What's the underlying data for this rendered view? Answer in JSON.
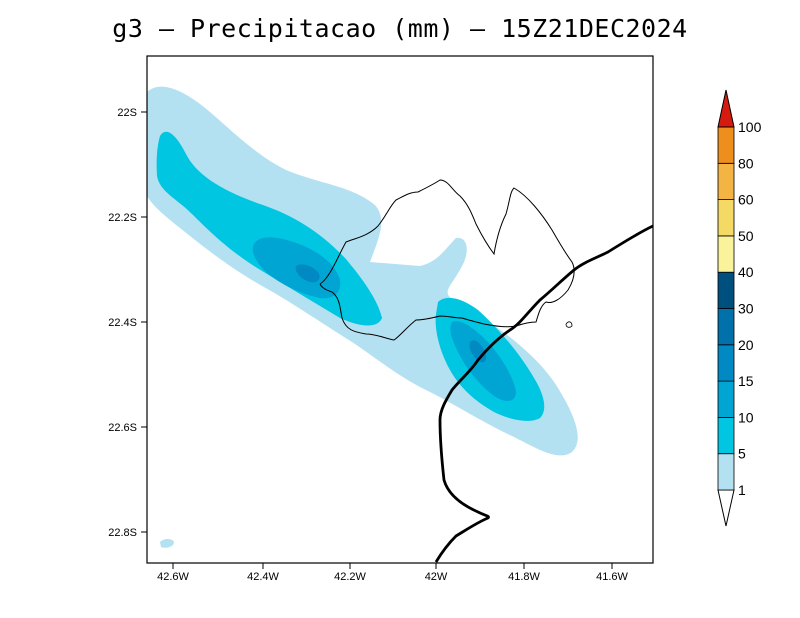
{
  "title": "g3 – Precipitacao (mm) – 15Z21DEC2024",
  "map": {
    "lat_labels": [
      "22S",
      "22.2S",
      "22.4S",
      "22.6S",
      "22.8S"
    ],
    "lon_labels": [
      "42.6W",
      "42.4W",
      "42.2W",
      "42W",
      "41.8W",
      "41.6W"
    ]
  },
  "colorbar": {
    "levels": [
      "1",
      "5",
      "10",
      "15",
      "20",
      "30",
      "40",
      "50",
      "60",
      "80",
      "100"
    ],
    "colors": [
      "#b4e1f1",
      "#00c6e1",
      "#00a5d4",
      "#0089c2",
      "#0071aa",
      "#00507f",
      "#faf39c",
      "#f5d965",
      "#f4b443",
      "#ee8f1d",
      "#d51a10"
    ]
  },
  "contour_colors": {
    "c1": "#b4e1f1",
    "c5": "#00c6e1",
    "c10": "#00a5d4",
    "c15": "#0089c2"
  }
}
